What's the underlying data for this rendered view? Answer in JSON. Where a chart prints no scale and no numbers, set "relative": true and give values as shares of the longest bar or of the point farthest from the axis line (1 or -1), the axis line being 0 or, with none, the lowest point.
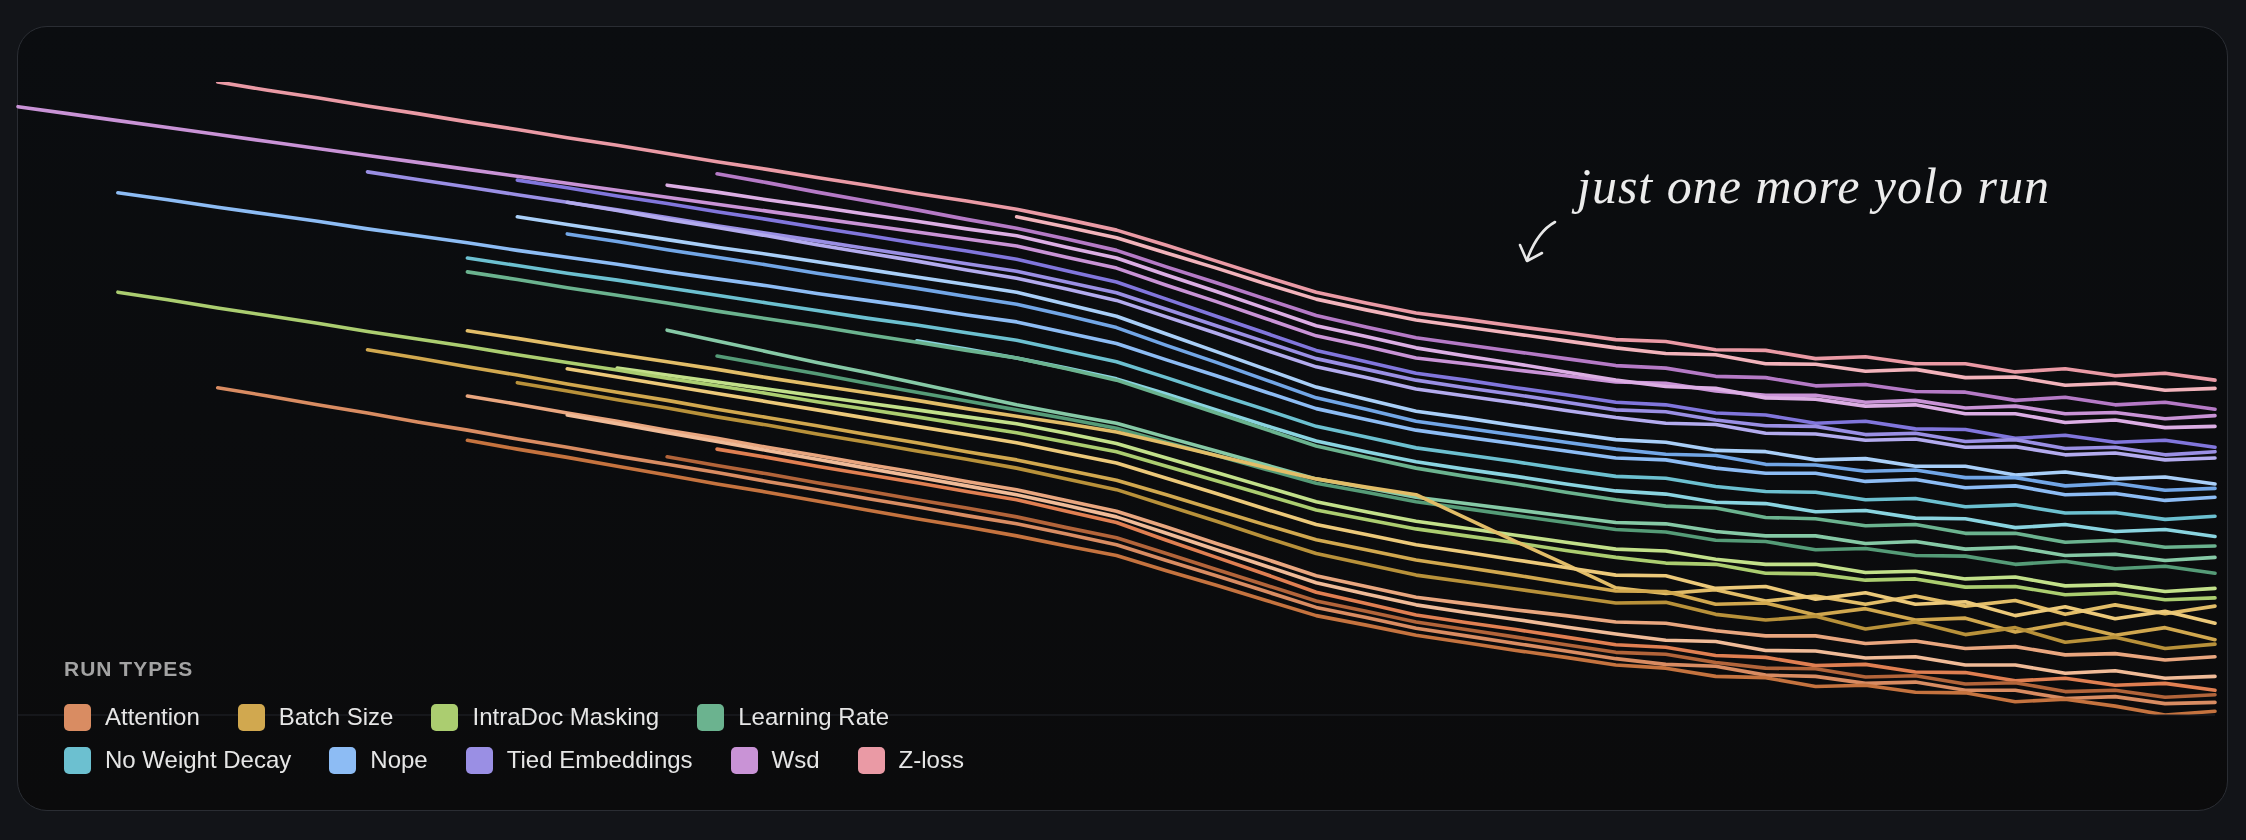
{
  "chart_data": {
    "type": "line",
    "relative": true,
    "marker": "none",
    "line_style": "solid",
    "legend": "bottom left",
    "legend_title": "RUN TYPES",
    "annotations": [
      "just one more yolo run"
    ],
    "categories": [
      null,
      null,
      null,
      null,
      null,
      null,
      null,
      null,
      null,
      null,
      null,
      null,
      null,
      null,
      null,
      null,
      null,
      null,
      null,
      null,
      null,
      null,
      null,
      null,
      null,
      null,
      null,
      null,
      null,
      null,
      null,
      null,
      null,
      null,
      null,
      null,
      null,
      null,
      null,
      null,
      null,
      null,
      null,
      null,
      null
    ],
    "series": [
      {
        "name": "Z-loss",
        "color": "#ea9aa5",
        "values": [
          null,
          null,
          null,
          null,
          1,
          0.987,
          0.975,
          0.962,
          0.95,
          0.937,
          0.925,
          0.912,
          0.9,
          0.887,
          0.874,
          0.862,
          0.849,
          0.837,
          0.824,
          0.812,
          0.799,
          0.783,
          0.766,
          0.742,
          0.717,
          0.692,
          0.668,
          0.651,
          0.635,
          0.625,
          0.614,
          0.604,
          0.593,
          0.59,
          0.577,
          0.576,
          0.563,
          0.566,
          0.555,
          0.555,
          0.542,
          0.547,
          0.536,
          0.54,
          0.529
        ]
      },
      {
        "color": "#f2b3bb",
        "values": [
          null,
          null,
          null,
          null,
          null,
          null,
          null,
          null,
          null,
          null,
          null,
          null,
          null,
          null,
          null,
          null,
          null,
          null,
          null,
          null,
          0.787,
          0.771,
          0.754,
          0.73,
          0.706,
          0.681,
          0.657,
          0.64,
          0.624,
          0.613,
          0.602,
          0.591,
          0.58,
          0.571,
          0.569,
          0.555,
          0.554,
          0.543,
          0.546,
          0.533,
          0.534,
          0.521,
          0.524,
          0.513,
          0.516
        ]
      },
      {
        "color": "#b57ac6",
        "values": [
          null,
          null,
          null,
          null,
          null,
          null,
          null,
          null,
          null,
          null,
          null,
          null,
          null,
          null,
          0.855,
          0.841,
          0.826,
          0.812,
          0.798,
          0.783,
          0.769,
          0.752,
          0.734,
          0.708,
          0.683,
          0.657,
          0.631,
          0.613,
          0.596,
          0.585,
          0.574,
          0.563,
          0.552,
          0.548,
          0.535,
          0.533,
          0.52,
          0.522,
          0.511,
          0.51,
          0.497,
          0.502,
          0.49,
          0.494,
          0.483
        ]
      },
      {
        "name": "Wsd",
        "color": "#c993d6",
        "values": [
          0.961,
          0.95,
          0.939,
          0.928,
          0.917,
          0.906,
          0.895,
          0.884,
          0.873,
          0.862,
          0.851,
          0.84,
          0.829,
          0.818,
          0.807,
          0.796,
          0.785,
          0.774,
          0.763,
          0.752,
          0.741,
          0.723,
          0.706,
          0.679,
          0.653,
          0.626,
          0.599,
          0.582,
          0.564,
          0.555,
          0.545,
          0.536,
          0.526,
          0.524,
          0.512,
          0.505,
          0.505,
          0.494,
          0.497,
          0.485,
          0.488,
          0.476,
          0.478,
          0.468,
          0.473
        ]
      },
      {
        "color": "#dcaee4",
        "values": [
          null,
          null,
          null,
          null,
          null,
          null,
          null,
          null,
          null,
          null,
          null,
          null,
          null,
          0.837,
          0.826,
          0.814,
          0.803,
          0.791,
          0.78,
          0.768,
          0.757,
          0.739,
          0.722,
          0.695,
          0.669,
          0.642,
          0.615,
          0.598,
          0.58,
          0.567,
          0.555,
          0.542,
          0.529,
          0.519,
          0.516,
          0.501,
          0.499,
          0.488,
          0.49,
          0.476,
          0.476,
          0.462,
          0.466,
          0.454,
          0.456
        ]
      },
      {
        "color": "#8176dc",
        "values": [
          null,
          null,
          null,
          null,
          null,
          null,
          null,
          null,
          null,
          null,
          0.845,
          0.833,
          0.82,
          0.808,
          0.795,
          0.783,
          0.77,
          0.758,
          0.745,
          0.733,
          0.72,
          0.702,
          0.684,
          0.657,
          0.63,
          0.603,
          0.576,
          0.558,
          0.54,
          0.529,
          0.517,
          0.506,
          0.494,
          0.49,
          0.477,
          0.474,
          0.461,
          0.464,
          0.452,
          0.451,
          0.437,
          0.442,
          0.431,
          0.434,
          0.423
        ]
      },
      {
        "name": "Tied Embeddings",
        "color": "#9a8fe4",
        "values": [
          null,
          null,
          null,
          null,
          null,
          null,
          null,
          0.858,
          0.846,
          0.834,
          0.822,
          0.81,
          0.798,
          0.786,
          0.773,
          0.761,
          0.749,
          0.737,
          0.725,
          0.713,
          0.701,
          0.684,
          0.667,
          0.641,
          0.615,
          0.589,
          0.563,
          0.546,
          0.529,
          0.517,
          0.506,
          0.494,
          0.482,
          0.479,
          0.466,
          0.457,
          0.456,
          0.443,
          0.445,
          0.432,
          0.435,
          0.421,
          0.423,
          0.411,
          0.416
        ]
      },
      {
        "color": "#b3abee",
        "values": [
          null,
          null,
          null,
          null,
          null,
          null,
          null,
          null,
          null,
          null,
          null,
          0.81,
          0.797,
          0.783,
          0.77,
          0.757,
          0.743,
          0.73,
          0.717,
          0.703,
          0.69,
          0.673,
          0.655,
          0.629,
          0.603,
          0.576,
          0.55,
          0.533,
          0.515,
          0.504,
          0.493,
          0.481,
          0.47,
          0.461,
          0.459,
          0.445,
          0.444,
          0.434,
          0.436,
          0.423,
          0.424,
          0.411,
          0.414,
          0.403,
          0.406
        ]
      },
      {
        "color": "#a9cff8",
        "values": [
          null,
          null,
          null,
          null,
          null,
          null,
          null,
          null,
          null,
          null,
          0.787,
          0.775,
          0.763,
          0.751,
          0.739,
          0.728,
          0.716,
          0.704,
          0.692,
          0.68,
          0.668,
          0.649,
          0.63,
          0.602,
          0.574,
          0.546,
          0.518,
          0.499,
          0.48,
          0.469,
          0.457,
          0.446,
          0.435,
          0.431,
          0.418,
          0.416,
          0.403,
          0.405,
          0.393,
          0.393,
          0.379,
          0.384,
          0.373,
          0.376,
          0.365
        ]
      },
      {
        "color": "#72a6e6",
        "values": [
          null,
          null,
          null,
          null,
          null,
          null,
          null,
          null,
          null,
          null,
          null,
          0.76,
          0.748,
          0.735,
          0.723,
          0.711,
          0.698,
          0.686,
          0.674,
          0.661,
          0.649,
          0.631,
          0.612,
          0.584,
          0.557,
          0.529,
          0.501,
          0.483,
          0.464,
          0.453,
          0.442,
          0.431,
          0.42,
          0.412,
          0.41,
          0.396,
          0.395,
          0.385,
          0.387,
          0.375,
          0.375,
          0.362,
          0.366,
          0.355,
          0.358
        ]
      },
      {
        "name": "Nope",
        "color": "#8dbcf4",
        "values": [
          null,
          null,
          0.825,
          0.814,
          0.802,
          0.791,
          0.78,
          0.768,
          0.757,
          0.746,
          0.734,
          0.723,
          0.712,
          0.7,
          0.689,
          0.678,
          0.666,
          0.655,
          0.644,
          0.632,
          0.621,
          0.604,
          0.587,
          0.561,
          0.536,
          0.51,
          0.484,
          0.467,
          0.45,
          0.439,
          0.428,
          0.417,
          0.406,
          0.403,
          0.39,
          0.382,
          0.382,
          0.369,
          0.372,
          0.359,
          0.362,
          0.348,
          0.35,
          0.339,
          0.344
        ]
      },
      {
        "name": "No Weight Decay",
        "color": "#6cc0d0",
        "values": [
          null,
          null,
          null,
          null,
          null,
          null,
          null,
          null,
          null,
          0.722,
          0.71,
          0.698,
          0.687,
          0.675,
          0.663,
          0.651,
          0.639,
          0.627,
          0.616,
          0.604,
          0.592,
          0.575,
          0.558,
          0.533,
          0.507,
          0.482,
          0.456,
          0.439,
          0.422,
          0.411,
          0.4,
          0.388,
          0.377,
          0.374,
          0.361,
          0.353,
          0.352,
          0.34,
          0.342,
          0.329,
          0.332,
          0.319,
          0.32,
          0.309,
          0.314
        ]
      },
      {
        "color": "#8ad4e0",
        "values": [
          null,
          null,
          null,
          null,
          null,
          null,
          null,
          null,
          null,
          null,
          null,
          null,
          null,
          null,
          null,
          null,
          null,
          null,
          0.591,
          0.578,
          0.564,
          0.548,
          0.531,
          0.507,
          0.482,
          0.457,
          0.433,
          0.416,
          0.4,
          0.388,
          0.377,
          0.365,
          0.354,
          0.349,
          0.336,
          0.334,
          0.321,
          0.323,
          0.311,
          0.31,
          0.296,
          0.301,
          0.29,
          0.293,
          0.282
        ]
      },
      {
        "name": "Learning Rate",
        "color": "#6bb38f",
        "values": [
          null,
          null,
          null,
          null,
          null,
          null,
          null,
          null,
          null,
          0.7,
          0.688,
          0.675,
          0.663,
          0.651,
          0.638,
          0.626,
          0.614,
          0.601,
          0.589,
          0.576,
          0.564,
          0.547,
          0.529,
          0.503,
          0.477,
          0.451,
          0.425,
          0.407,
          0.39,
          0.377,
          0.365,
          0.352,
          0.34,
          0.33,
          0.327,
          0.312,
          0.31,
          0.299,
          0.301,
          0.287,
          0.287,
          0.273,
          0.276,
          0.265,
          0.267
        ]
      },
      {
        "color": "#86c9a6",
        "values": [
          null,
          null,
          null,
          null,
          null,
          null,
          null,
          null,
          null,
          null,
          null,
          null,
          null,
          0.608,
          0.591,
          0.574,
          0.557,
          0.541,
          0.524,
          0.507,
          0.49,
          0.475,
          0.461,
          0.439,
          0.417,
          0.395,
          0.373,
          0.359,
          0.344,
          0.334,
          0.324,
          0.314,
          0.304,
          0.302,
          0.29,
          0.283,
          0.283,
          0.271,
          0.274,
          0.262,
          0.265,
          0.252,
          0.254,
          0.244,
          0.249
        ]
      },
      {
        "color": "#559b77",
        "values": [
          null,
          null,
          null,
          null,
          null,
          null,
          null,
          null,
          null,
          null,
          null,
          null,
          null,
          null,
          0.567,
          0.553,
          0.539,
          0.524,
          0.51,
          0.496,
          0.482,
          0.468,
          0.453,
          0.431,
          0.41,
          0.388,
          0.366,
          0.352,
          0.337,
          0.326,
          0.315,
          0.304,
          0.293,
          0.289,
          0.276,
          0.274,
          0.261,
          0.263,
          0.252,
          0.251,
          0.238,
          0.243,
          0.231,
          0.235,
          0.224
        ]
      },
      {
        "color": "#c2e08a",
        "values": [
          null,
          null,
          null,
          null,
          null,
          null,
          null,
          null,
          null,
          null,
          null,
          null,
          0.548,
          0.537,
          0.526,
          0.515,
          0.504,
          0.493,
          0.482,
          0.471,
          0.46,
          0.445,
          0.429,
          0.406,
          0.383,
          0.36,
          0.337,
          0.321,
          0.306,
          0.295,
          0.284,
          0.273,
          0.262,
          0.259,
          0.246,
          0.238,
          0.238,
          0.225,
          0.227,
          0.215,
          0.218,
          0.204,
          0.206,
          0.195,
          0.2
        ]
      },
      {
        "name": "IntraDoc Masking",
        "color": "#abcd70",
        "values": [
          null,
          null,
          0.668,
          0.656,
          0.643,
          0.631,
          0.619,
          0.606,
          0.594,
          0.582,
          0.569,
          0.557,
          0.545,
          0.532,
          0.52,
          0.508,
          0.495,
          0.483,
          0.471,
          0.458,
          0.446,
          0.431,
          0.416,
          0.393,
          0.37,
          0.347,
          0.324,
          0.309,
          0.294,
          0.283,
          0.272,
          0.26,
          0.249,
          0.24,
          0.238,
          0.224,
          0.223,
          0.213,
          0.215,
          0.202,
          0.203,
          0.19,
          0.193,
          0.182,
          0.185
        ]
      },
      {
        "color": "#e2bd68",
        "values": [
          null,
          null,
          null,
          null,
          null,
          null,
          null,
          null,
          null,
          0.607,
          0.595,
          0.582,
          0.57,
          0.558,
          0.546,
          0.533,
          0.521,
          0.509,
          0.497,
          0.484,
          0.472,
          0.46,
          0.447,
          0.429,
          0.41,
          0.391,
          0.373,
          0.36,
          0.348,
          0.311,
          0.274,
          0.238,
          0.201,
          0.192,
          0.198,
          0.18,
          0.188,
          0.175,
          0.188,
          0.172,
          0.181,
          0.159,
          0.174,
          0.16,
          0.172
        ]
      },
      {
        "color": "#ecc97a",
        "values": [
          null,
          null,
          null,
          null,
          null,
          null,
          null,
          null,
          null,
          null,
          null,
          0.547,
          0.534,
          0.521,
          0.508,
          0.495,
          0.482,
          0.469,
          0.456,
          0.443,
          0.43,
          0.414,
          0.398,
          0.374,
          0.35,
          0.325,
          0.301,
          0.285,
          0.269,
          0.257,
          0.245,
          0.233,
          0.221,
          0.22,
          0.2,
          0.203,
          0.183,
          0.193,
          0.175,
          0.179,
          0.157,
          0.171,
          0.152,
          0.164,
          0.145
        ]
      },
      {
        "name": "Batch Size",
        "color": "#d1a84f",
        "values": [
          null,
          null,
          null,
          null,
          null,
          null,
          null,
          0.577,
          0.564,
          0.55,
          0.537,
          0.523,
          0.51,
          0.497,
          0.483,
          0.47,
          0.457,
          0.443,
          0.43,
          0.416,
          0.403,
          0.387,
          0.371,
          0.348,
          0.324,
          0.3,
          0.277,
          0.261,
          0.245,
          0.233,
          0.221,
          0.208,
          0.196,
          0.195,
          0.175,
          0.177,
          0.158,
          0.168,
          0.15,
          0.153,
          0.131,
          0.145,
          0.126,
          0.138,
          0.119
        ]
      },
      {
        "color": "#b8913a",
        "values": [
          null,
          null,
          null,
          null,
          null,
          null,
          null,
          null,
          null,
          null,
          0.525,
          0.512,
          0.498,
          0.485,
          0.471,
          0.458,
          0.444,
          0.431,
          0.417,
          0.404,
          0.39,
          0.373,
          0.356,
          0.331,
          0.306,
          0.28,
          0.255,
          0.238,
          0.221,
          0.21,
          0.199,
          0.188,
          0.177,
          0.178,
          0.159,
          0.15,
          0.156,
          0.136,
          0.147,
          0.127,
          0.138,
          0.115,
          0.123,
          0.105,
          0.112
        ]
      },
      {
        "color": "#e9a67f",
        "values": [
          null,
          null,
          null,
          null,
          null,
          null,
          null,
          null,
          null,
          0.504,
          0.491,
          0.477,
          0.464,
          0.45,
          0.437,
          0.423,
          0.41,
          0.396,
          0.383,
          0.369,
          0.356,
          0.339,
          0.322,
          0.297,
          0.271,
          0.246,
          0.22,
          0.203,
          0.186,
          0.176,
          0.166,
          0.157,
          0.147,
          0.145,
          0.133,
          0.125,
          0.125,
          0.113,
          0.117,
          0.105,
          0.108,
          0.095,
          0.097,
          0.087,
          0.092
        ]
      },
      {
        "color": "#f0bb98",
        "values": [
          null,
          null,
          null,
          null,
          null,
          null,
          null,
          null,
          null,
          null,
          null,
          0.474,
          0.46,
          0.446,
          0.432,
          0.418,
          0.404,
          0.39,
          0.376,
          0.362,
          0.348,
          0.331,
          0.313,
          0.287,
          0.261,
          0.235,
          0.209,
          0.191,
          0.174,
          0.162,
          0.151,
          0.139,
          0.128,
          0.118,
          0.116,
          0.102,
          0.101,
          0.09,
          0.092,
          0.079,
          0.079,
          0.066,
          0.07,
          0.058,
          0.061
        ]
      },
      {
        "color": "#e07f52",
        "values": [
          null,
          null,
          null,
          null,
          null,
          null,
          null,
          null,
          null,
          null,
          null,
          null,
          null,
          null,
          0.42,
          0.407,
          0.393,
          0.38,
          0.367,
          0.353,
          0.34,
          0.322,
          0.304,
          0.276,
          0.249,
          0.222,
          0.194,
          0.176,
          0.158,
          0.146,
          0.135,
          0.123,
          0.111,
          0.107,
          0.094,
          0.091,
          0.078,
          0.08,
          0.068,
          0.067,
          0.054,
          0.058,
          0.047,
          0.05,
          0.039
        ]
      },
      {
        "color": "#b2643a",
        "values": [
          null,
          null,
          null,
          null,
          null,
          null,
          null,
          null,
          null,
          null,
          null,
          null,
          null,
          0.408,
          0.394,
          0.381,
          0.367,
          0.354,
          0.34,
          0.327,
          0.313,
          0.296,
          0.28,
          0.255,
          0.23,
          0.205,
          0.18,
          0.164,
          0.147,
          0.135,
          0.123,
          0.111,
          0.099,
          0.096,
          0.083,
          0.074,
          0.073,
          0.06,
          0.062,
          0.049,
          0.051,
          0.037,
          0.039,
          0.028,
          0.032
        ]
      },
      {
        "name": "Attention",
        "color": "#d98c62",
        "values": [
          null,
          null,
          null,
          null,
          0.517,
          0.504,
          0.49,
          0.477,
          0.463,
          0.45,
          0.436,
          0.423,
          0.409,
          0.396,
          0.383,
          0.369,
          0.356,
          0.342,
          0.329,
          0.315,
          0.302,
          0.286,
          0.269,
          0.244,
          0.22,
          0.195,
          0.17,
          0.154,
          0.137,
          0.125,
          0.113,
          0.101,
          0.089,
          0.08,
          0.077,
          0.063,
          0.061,
          0.05,
          0.052,
          0.039,
          0.039,
          0.026,
          0.029,
          0.018,
          0.02
        ]
      },
      {
        "color": "#c5733f",
        "values": [
          null,
          null,
          null,
          null,
          null,
          null,
          null,
          null,
          null,
          0.434,
          0.42,
          0.407,
          0.393,
          0.379,
          0.365,
          0.352,
          0.338,
          0.324,
          0.31,
          0.297,
          0.283,
          0.267,
          0.252,
          0.228,
          0.205,
          0.181,
          0.157,
          0.142,
          0.126,
          0.114,
          0.102,
          0.091,
          0.079,
          0.074,
          0.061,
          0.059,
          0.045,
          0.047,
          0.036,
          0.035,
          0.021,
          0.025,
          0.014,
          0,
          0.006
        ]
      }
    ]
  }
}
